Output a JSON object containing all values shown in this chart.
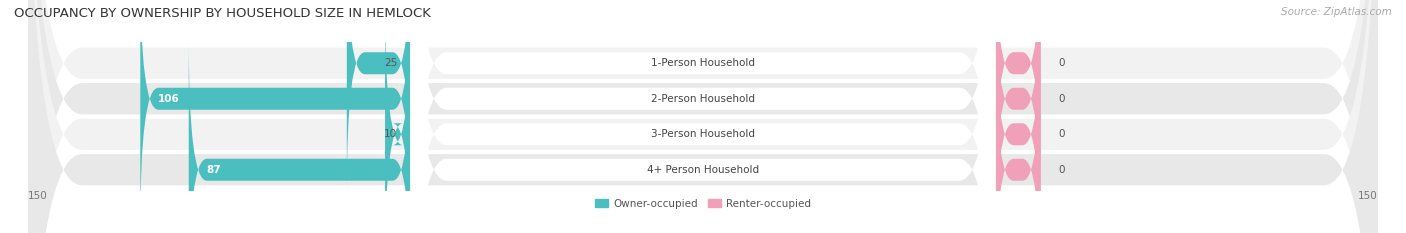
{
  "title": "OCCUPANCY BY OWNERSHIP BY HOUSEHOLD SIZE IN HEMLOCK",
  "source": "Source: ZipAtlas.com",
  "categories": [
    "1-Person Household",
    "2-Person Household",
    "3-Person Household",
    "4+ Person Household"
  ],
  "owner_values": [
    25,
    106,
    10,
    87
  ],
  "renter_values": [
    0,
    0,
    0,
    0
  ],
  "owner_color": "#4bbfbf",
  "renter_color": "#f0a0b8",
  "row_bg_light": "#f2f2f2",
  "row_bg_dark": "#e8e8e8",
  "label_bg": "#ffffff",
  "max_val": 150,
  "legend_labels": [
    "Owner-occupied",
    "Renter-occupied"
  ],
  "title_fontsize": 9.5,
  "source_fontsize": 7.5,
  "label_fontsize": 7.5,
  "value_fontsize": 7.5,
  "axis_label_fontsize": 7.5
}
